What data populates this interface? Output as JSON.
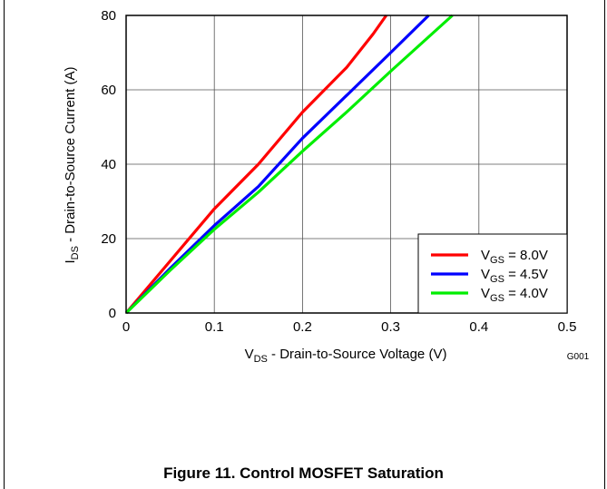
{
  "chart_data": {
    "type": "line",
    "xlabel": {
      "main": "V",
      "sub": "DS",
      "rest": " - Drain-to-Source Voltage (V)"
    },
    "ylabel": {
      "main": "I",
      "sub": "DS",
      "rest": " - Drain-to-Source Current (A)"
    },
    "xlim": [
      0,
      0.5
    ],
    "ylim": [
      0,
      80
    ],
    "xticks": [
      0,
      0.1,
      0.2,
      0.3,
      0.4,
      0.5
    ],
    "xtick_labels": [
      "0",
      "0.1",
      "0.2",
      "0.3",
      "0.4",
      "0.5"
    ],
    "yticks": [
      0,
      20,
      40,
      60,
      80
    ],
    "ytick_labels": [
      "0",
      "20",
      "40",
      "60",
      "80"
    ],
    "grid": true,
    "legend_position": "bottom-right",
    "series": [
      {
        "name": "VGS = 8.0V",
        "label_main": "V",
        "label_sub": "GS",
        "label_rest": " = 8.0V",
        "color": "#ff0000",
        "x": [
          0,
          0.05,
          0.1,
          0.15,
          0.2,
          0.25,
          0.28,
          0.295
        ],
        "y": [
          0,
          14,
          28,
          40,
          54,
          66,
          75,
          80
        ]
      },
      {
        "name": "VGS = 4.5V",
        "label_main": "V",
        "label_sub": "GS",
        "label_rest": " = 4.5V",
        "color": "#0000ff",
        "x": [
          0,
          0.05,
          0.1,
          0.15,
          0.2,
          0.25,
          0.3,
          0.343
        ],
        "y": [
          0,
          12,
          23.5,
          34,
          47,
          58.5,
          70,
          80
        ]
      },
      {
        "name": "VGS = 4.0V",
        "label_main": "V",
        "label_sub": "GS",
        "label_rest": " = 4.0V",
        "color": "#00ee00",
        "x": [
          0,
          0.05,
          0.1,
          0.15,
          0.2,
          0.25,
          0.3,
          0.37
        ],
        "y": [
          0,
          11.5,
          22.5,
          32.5,
          43.5,
          54,
          65,
          80
        ]
      }
    ]
  },
  "figure_code": "G001",
  "caption": "Figure 11.  Control MOSFET Saturation"
}
